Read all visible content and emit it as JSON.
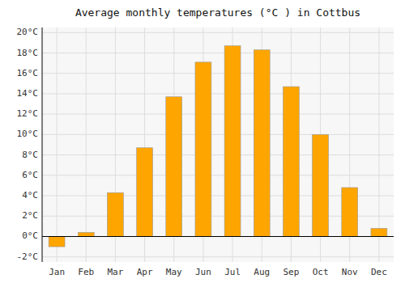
{
  "chart_data": {
    "type": "bar",
    "title": "Average monthly temperatures (°C ) in Cottbus",
    "categories": [
      "Jan",
      "Feb",
      "Mar",
      "Apr",
      "May",
      "Jun",
      "Jul",
      "Aug",
      "Sep",
      "Oct",
      "Nov",
      "Dec"
    ],
    "values": [
      -1.0,
      0.4,
      4.3,
      8.7,
      13.7,
      17.1,
      18.7,
      18.3,
      14.7,
      10.0,
      4.8,
      0.8
    ],
    "color": "#FFA500",
    "ylim": [
      -2.5,
      20.5
    ],
    "yticks": [
      {
        "value": -2,
        "label": "-2°C"
      },
      {
        "value": 0,
        "label": "0°C"
      },
      {
        "value": 2,
        "label": "2°C"
      },
      {
        "value": 4,
        "label": "4°C"
      },
      {
        "value": 6,
        "label": "6°C"
      },
      {
        "value": 8,
        "label": "8°C"
      },
      {
        "value": 10,
        "label": "10°C"
      },
      {
        "value": 12,
        "label": "12°C"
      },
      {
        "value": 14,
        "label": "14°C"
      },
      {
        "value": 16,
        "label": "16°C"
      },
      {
        "value": 18,
        "label": "18°C"
      },
      {
        "value": 20,
        "label": "20°C"
      }
    ],
    "grid": true
  }
}
